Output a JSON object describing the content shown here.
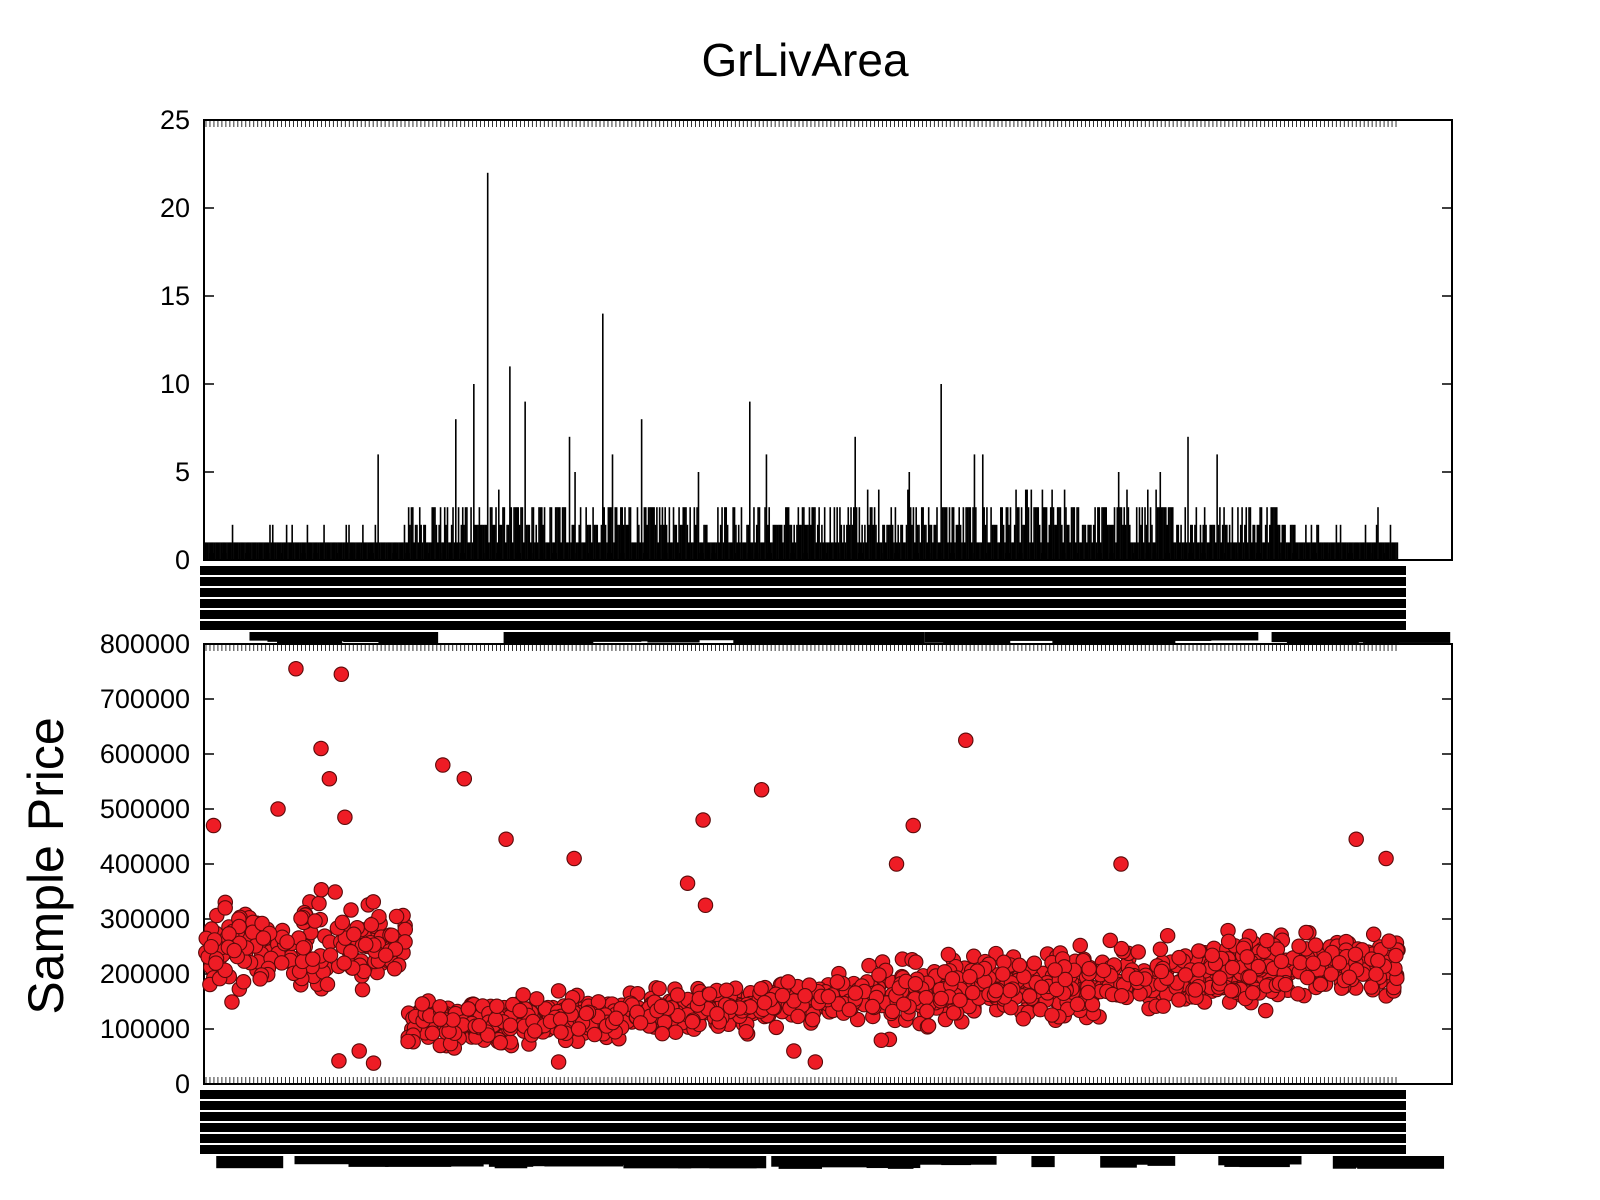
{
  "chart_data": [
    {
      "type": "bar",
      "title": "GrLivArea",
      "xlabel": "",
      "ylabel": "",
      "ylim": [
        0,
        25
      ],
      "yticks": [
        "0",
        "5",
        "10",
        "15",
        "20",
        "25"
      ],
      "n_categories": 861,
      "xtick_labels": "dense, overlapping, illegible",
      "peaks": [
        {
          "position_fraction": 0.145,
          "count": 6
        },
        {
          "position_fraction": 0.21,
          "count": 8
        },
        {
          "position_fraction": 0.225,
          "count": 10
        },
        {
          "position_fraction": 0.237,
          "count": 22
        },
        {
          "position_fraction": 0.246,
          "count": 4
        },
        {
          "position_fraction": 0.255,
          "count": 11
        },
        {
          "position_fraction": 0.268,
          "count": 9
        },
        {
          "position_fraction": 0.305,
          "count": 7
        },
        {
          "position_fraction": 0.31,
          "count": 5
        },
        {
          "position_fraction": 0.333,
          "count": 14
        },
        {
          "position_fraction": 0.342,
          "count": 6
        },
        {
          "position_fraction": 0.366,
          "count": 8
        },
        {
          "position_fraction": 0.414,
          "count": 5
        },
        {
          "position_fraction": 0.457,
          "count": 9
        },
        {
          "position_fraction": 0.47,
          "count": 6
        },
        {
          "position_fraction": 0.545,
          "count": 7
        },
        {
          "position_fraction": 0.59,
          "count": 5
        },
        {
          "position_fraction": 0.617,
          "count": 10
        },
        {
          "position_fraction": 0.645,
          "count": 6
        },
        {
          "position_fraction": 0.652,
          "count": 6
        },
        {
          "position_fraction": 0.765,
          "count": 5
        },
        {
          "position_fraction": 0.8,
          "count": 5
        },
        {
          "position_fraction": 0.823,
          "count": 7
        },
        {
          "position_fraction": 0.848,
          "count": 6
        },
        {
          "position_fraction": 0.983,
          "count": 3
        }
      ]
    },
    {
      "type": "scatter",
      "title": "",
      "xlabel": "",
      "ylabel": "Sample Price",
      "ylim": [
        0,
        800000
      ],
      "yticks": [
        "0",
        "100000",
        "200000",
        "300000",
        "400000",
        "500000",
        "600000",
        "700000",
        "800000"
      ],
      "color": "#ee1c25",
      "edge_color": "#5a0a0a",
      "xtick_labels": "dense, overlapping, illegible",
      "notable_points": [
        {
          "x_fraction": 0.077,
          "y": 755000
        },
        {
          "x_fraction": 0.115,
          "y": 745000
        },
        {
          "x_fraction": 0.098,
          "y": 610000
        },
        {
          "x_fraction": 0.105,
          "y": 555000
        },
        {
          "x_fraction": 0.2,
          "y": 580000
        },
        {
          "x_fraction": 0.218,
          "y": 555000
        },
        {
          "x_fraction": 0.467,
          "y": 535000
        },
        {
          "x_fraction": 0.638,
          "y": 625000
        },
        {
          "x_fraction": 0.418,
          "y": 480000
        },
        {
          "x_fraction": 0.594,
          "y": 470000
        },
        {
          "x_fraction": 0.062,
          "y": 500000
        },
        {
          "x_fraction": 0.008,
          "y": 470000
        },
        {
          "x_fraction": 0.118,
          "y": 485000
        },
        {
          "x_fraction": 0.253,
          "y": 445000
        },
        {
          "x_fraction": 0.31,
          "y": 410000
        },
        {
          "x_fraction": 0.58,
          "y": 400000
        },
        {
          "x_fraction": 0.768,
          "y": 400000
        },
        {
          "x_fraction": 0.965,
          "y": 445000
        },
        {
          "x_fraction": 0.99,
          "y": 410000
        },
        {
          "x_fraction": 0.405,
          "y": 365000
        },
        {
          "x_fraction": 0.42,
          "y": 325000
        },
        {
          "x_fraction": 0.13,
          "y": 60000
        },
        {
          "x_fraction": 0.142,
          "y": 38000
        },
        {
          "x_fraction": 0.113,
          "y": 42000
        },
        {
          "x_fraction": 0.297,
          "y": 40000
        },
        {
          "x_fraction": 0.494,
          "y": 60000
        },
        {
          "x_fraction": 0.512,
          "y": 40000
        }
      ]
    }
  ]
}
